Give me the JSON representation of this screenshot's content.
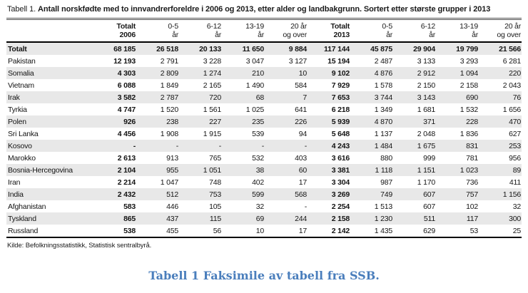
{
  "title": {
    "prefix": "Tabell 1.",
    "main": "Antall norskfødte med to innvandrerforeldre i 2006 og 2013, etter alder og landbakgrunn. Sortert etter største grupper i 2013"
  },
  "table": {
    "columns": [
      {
        "line1": "Totalt",
        "line2": "2006",
        "bold": true
      },
      {
        "line1": "0-5",
        "line2": "år",
        "bold": false
      },
      {
        "line1": "6-12",
        "line2": "år",
        "bold": false
      },
      {
        "line1": "13-19",
        "line2": "år",
        "bold": false
      },
      {
        "line1": "20 år",
        "line2": "og over",
        "bold": false
      },
      {
        "line1": "Totalt",
        "line2": "2013",
        "bold": true
      },
      {
        "line1": "0-5",
        "line2": "år",
        "bold": false
      },
      {
        "line1": "6-12",
        "line2": "år",
        "bold": false
      },
      {
        "line1": "13-19",
        "line2": "år",
        "bold": false
      },
      {
        "line1": "20 år",
        "line2": "og over",
        "bold": false
      }
    ],
    "bold_value_columns": [
      0,
      5
    ],
    "rows": [
      {
        "label": "Totalt",
        "bold": true,
        "values": [
          "68 185",
          "26 518",
          "20 133",
          "11 650",
          "9 884",
          "117 144",
          "45 875",
          "29 904",
          "19 799",
          "21 566"
        ]
      },
      {
        "label": "Pakistan",
        "bold": false,
        "values": [
          "12 193",
          "2 791",
          "3 228",
          "3 047",
          "3 127",
          "15 194",
          "2 487",
          "3 133",
          "3 293",
          "6 281"
        ]
      },
      {
        "label": "Somalia",
        "bold": false,
        "values": [
          "4 303",
          "2 809",
          "1 274",
          "210",
          "10",
          "9 102",
          "4 876",
          "2 912",
          "1 094",
          "220"
        ]
      },
      {
        "label": "Vietnam",
        "bold": false,
        "values": [
          "6 088",
          "1 849",
          "2 165",
          "1 490",
          "584",
          "7 929",
          "1 578",
          "2 150",
          "2 158",
          "2 043"
        ]
      },
      {
        "label": "Irak",
        "bold": false,
        "values": [
          "3 582",
          "2 787",
          "720",
          "68",
          "7",
          "7 653",
          "3 744",
          "3 143",
          "690",
          "76"
        ]
      },
      {
        "label": "Tyrkia",
        "bold": false,
        "values": [
          "4 747",
          "1 520",
          "1 561",
          "1 025",
          "641",
          "6 218",
          "1 349",
          "1 681",
          "1 532",
          "1 656"
        ]
      },
      {
        "label": "Polen",
        "bold": false,
        "values": [
          "926",
          "238",
          "227",
          "235",
          "226",
          "5 939",
          "4 870",
          "371",
          "228",
          "470"
        ]
      },
      {
        "label": "Sri Lanka",
        "bold": false,
        "values": [
          "4 456",
          "1 908",
          "1 915",
          "539",
          "94",
          "5 648",
          "1 137",
          "2 048",
          "1 836",
          "627"
        ]
      },
      {
        "label": "Kosovo",
        "bold": false,
        "values": [
          "-",
          "-",
          "-",
          "-",
          "-",
          "4 243",
          "1 484",
          "1 675",
          "831",
          "253"
        ]
      },
      {
        "label": "Marokko",
        "bold": false,
        "values": [
          "2 613",
          "913",
          "765",
          "532",
          "403",
          "3 616",
          "880",
          "999",
          "781",
          "956"
        ]
      },
      {
        "label": "Bosnia-Hercegovina",
        "bold": false,
        "values": [
          "2 104",
          "955",
          "1 051",
          "38",
          "60",
          "3 381",
          "1 118",
          "1 151",
          "1 023",
          "89"
        ]
      },
      {
        "label": "Iran",
        "bold": false,
        "values": [
          "2 214",
          "1 047",
          "748",
          "402",
          "17",
          "3 304",
          "987",
          "1 170",
          "736",
          "411"
        ]
      },
      {
        "label": "India",
        "bold": false,
        "values": [
          "2 432",
          "512",
          "753",
          "599",
          "568",
          "3 269",
          "749",
          "607",
          "757",
          "1 156"
        ]
      },
      {
        "label": "Afghanistan",
        "bold": false,
        "values": [
          "583",
          "446",
          "105",
          "32",
          "-",
          "2 254",
          "1 513",
          "607",
          "102",
          "32"
        ]
      },
      {
        "label": "Tyskland",
        "bold": false,
        "values": [
          "865",
          "437",
          "115",
          "69",
          "244",
          "2 158",
          "1 230",
          "511",
          "117",
          "300"
        ]
      },
      {
        "label": "Russland",
        "bold": false,
        "values": [
          "538",
          "455",
          "56",
          "10",
          "17",
          "2 142",
          "1 435",
          "629",
          "53",
          "25"
        ]
      }
    ]
  },
  "source": "Kilde: Befolkningsstatistikk, Statistisk sentralbyrå.",
  "caption": "Tabell 1 Faksimile av tabell fra SSB.",
  "colors": {
    "caption_blue": "#4a7ebc",
    "row_stripe": "#e8e8e8",
    "rule_dark": "#000000"
  }
}
